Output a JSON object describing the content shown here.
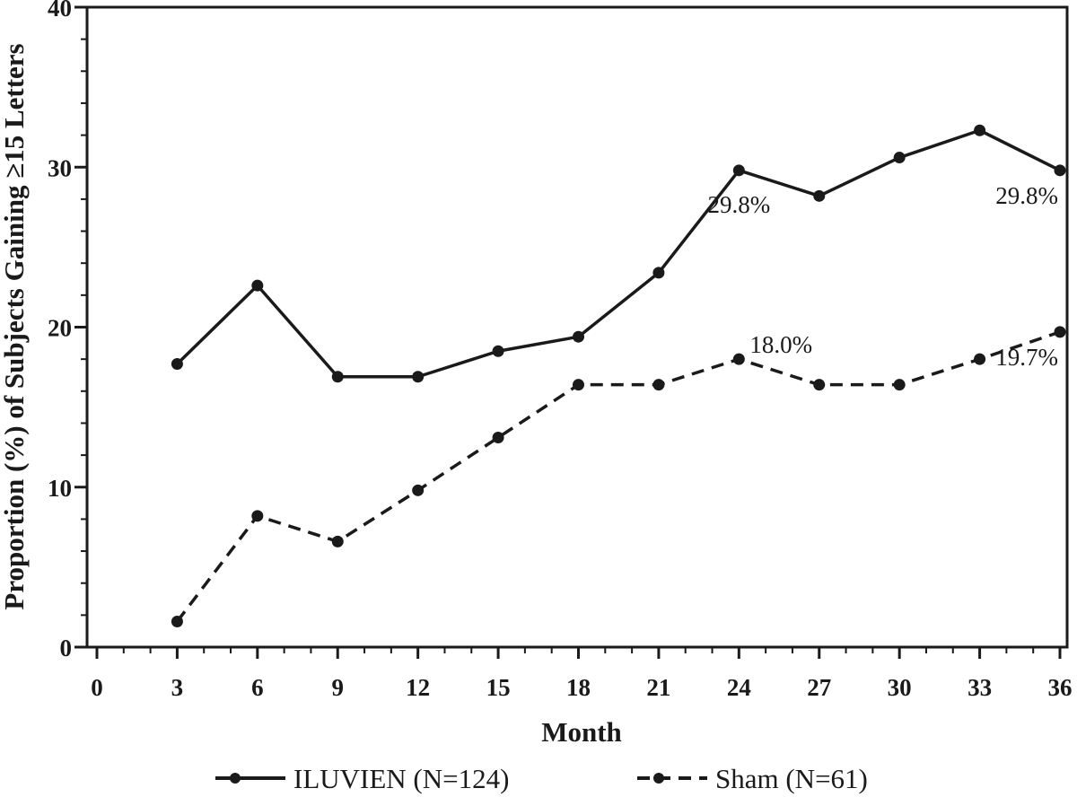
{
  "chart_data": {
    "type": "line",
    "title": "",
    "xlabel": "Month",
    "ylabel": "Proportion (%) of Subjects Gaining ≥15 Letters",
    "xlim": [
      0,
      36
    ],
    "ylim": [
      0,
      40
    ],
    "x_ticks": [
      0,
      3,
      6,
      9,
      12,
      15,
      18,
      21,
      24,
      27,
      30,
      33,
      36
    ],
    "y_ticks": [
      0,
      10,
      20,
      30,
      40
    ],
    "x_minor_step": 1,
    "y_minor_step": 2,
    "grid": false,
    "legend_position": "bottom",
    "series": [
      {
        "name": "ILUVIEN (N=124)",
        "style": "solid",
        "color": "#1a1a1a",
        "x": [
          3,
          6,
          9,
          12,
          15,
          18,
          21,
          24,
          27,
          30,
          33,
          36
        ],
        "values": [
          17.7,
          22.6,
          16.9,
          16.9,
          18.5,
          19.4,
          23.4,
          29.8,
          28.2,
          30.6,
          32.3,
          29.8
        ]
      },
      {
        "name": "Sham (N=61)",
        "style": "dashed",
        "color": "#1a1a1a",
        "x": [
          3,
          6,
          9,
          12,
          15,
          18,
          21,
          24,
          27,
          30,
          33,
          36
        ],
        "values": [
          1.6,
          8.2,
          6.6,
          9.8,
          13.1,
          16.4,
          16.4,
          18.0,
          16.4,
          16.4,
          18.0,
          19.7
        ]
      }
    ],
    "annotations": [
      {
        "text": "29.8%",
        "series": 0,
        "x": 24,
        "placement": "below"
      },
      {
        "text": "29.8%",
        "series": 0,
        "x": 36,
        "placement": "below-left"
      },
      {
        "text": "18.0%",
        "series": 1,
        "x": 24,
        "placement": "above-right"
      },
      {
        "text": "19.7%",
        "series": 1,
        "x": 36,
        "placement": "below-left"
      }
    ]
  }
}
